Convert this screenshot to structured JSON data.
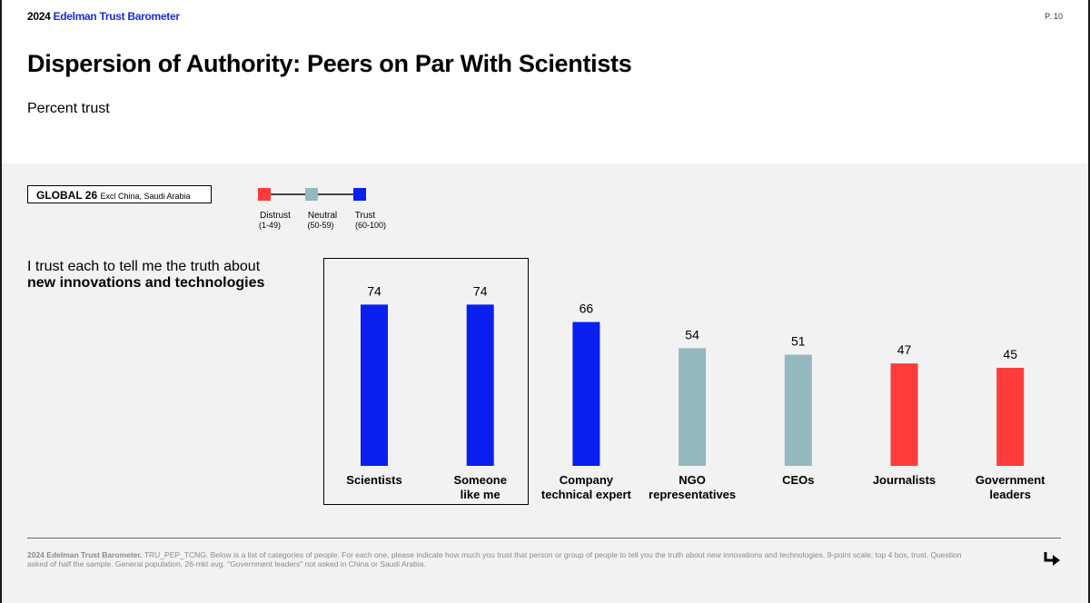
{
  "header": {
    "brand_year": "2024",
    "brand_name": "Edelman Trust Barometer",
    "page_number": "P. 10"
  },
  "title": "Dispersion of Authority: Peers on Par With Scientists",
  "subtitle": "Percent trust",
  "filter_box": {
    "main": "GLOBAL 26",
    "sub": "Excl China, Saudi Arabia"
  },
  "legend": [
    {
      "label": "Distrust",
      "range": "(1-49)",
      "color": "#ff3b3b"
    },
    {
      "label": "Neutral",
      "range": "(50-59)",
      "color": "#93b9bf"
    },
    {
      "label": "Trust",
      "range": "(60-100)",
      "color": "#0a1ff0"
    }
  ],
  "question": {
    "line1": "I trust each to tell me the truth about",
    "line2": "new innovations and technologies"
  },
  "chart_data": {
    "type": "bar",
    "categories": [
      [
        "Scientists"
      ],
      [
        "Someone",
        "like me"
      ],
      [
        "Company",
        "technical expert"
      ],
      [
        "NGO",
        "representatives"
      ],
      [
        "CEOs"
      ],
      [
        "Journalists"
      ],
      [
        "Government",
        "leaders"
      ]
    ],
    "values": [
      74,
      74,
      66,
      54,
      51,
      47,
      45
    ],
    "colors": [
      "#0a1ff0",
      "#0a1ff0",
      "#0a1ff0",
      "#93b9bf",
      "#93b9bf",
      "#ff3b3b",
      "#ff3b3b"
    ],
    "ylim": [
      0,
      100
    ],
    "highlighted_categories": [
      "Scientists",
      "Someone like me"
    ]
  },
  "footnote": {
    "bold": "2024 Edelman Trust Barometer.",
    "text": " TRU_PEP_TCNG. Below is a list of categories of people. For each one, please indicate how much you trust that person or group of people to tell you the truth about new innovations and technologies. 9-point scale; top 4 box, trust. Question asked of half the sample. General population, 26-mkt avg. \"Government leaders\" not asked in China or Saudi Arabia."
  },
  "icons": {
    "next": "arrow-down-right-icon"
  }
}
